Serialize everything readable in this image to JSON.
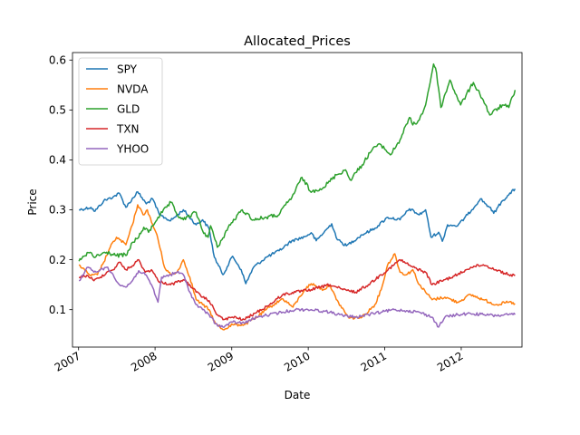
{
  "chart_data": {
    "type": "line",
    "title": "Allocated_Prices",
    "xlabel": "Date",
    "ylabel": "Price",
    "xlim": [
      "2006-12-03",
      "2012-10-17"
    ],
    "ylim": [
      0.025,
      0.615
    ],
    "x_ticks": [
      "2007",
      "2008",
      "2009",
      "2010",
      "2011",
      "2012"
    ],
    "y_ticks": [
      "0.1",
      "0.2",
      "0.3",
      "0.4",
      "0.5",
      "0.6"
    ],
    "grid": false,
    "legend_position": "top-left",
    "series": [
      {
        "name": "SPY",
        "color": "#1f77b4",
        "points": [
          [
            "2007-01-03",
            0.3
          ],
          [
            "2007-03-01",
            0.305
          ],
          [
            "2007-03-20",
            0.297
          ],
          [
            "2007-05-01",
            0.318
          ],
          [
            "2007-06-15",
            0.326
          ],
          [
            "2007-07-15",
            0.333
          ],
          [
            "2007-08-15",
            0.305
          ],
          [
            "2007-10-10",
            0.336
          ],
          [
            "2007-11-20",
            0.312
          ],
          [
            "2007-12-20",
            0.322
          ],
          [
            "2008-01-22",
            0.29
          ],
          [
            "2008-03-15",
            0.278
          ],
          [
            "2008-05-15",
            0.3
          ],
          [
            "2008-07-15",
            0.27
          ],
          [
            "2008-08-15",
            0.28
          ],
          [
            "2008-09-15",
            0.262
          ],
          [
            "2008-10-10",
            0.205
          ],
          [
            "2008-11-20",
            0.17
          ],
          [
            "2009-01-05",
            0.207
          ],
          [
            "2009-02-15",
            0.18
          ],
          [
            "2009-03-09",
            0.152
          ],
          [
            "2009-04-15",
            0.185
          ],
          [
            "2009-06-15",
            0.205
          ],
          [
            "2009-08-15",
            0.218
          ],
          [
            "2009-10-15",
            0.238
          ],
          [
            "2009-12-15",
            0.246
          ],
          [
            "2010-01-15",
            0.254
          ],
          [
            "2010-02-08",
            0.238
          ],
          [
            "2010-04-23",
            0.272
          ],
          [
            "2010-05-20",
            0.24
          ],
          [
            "2010-07-02",
            0.228
          ],
          [
            "2010-09-15",
            0.25
          ],
          [
            "2010-11-15",
            0.263
          ],
          [
            "2011-01-15",
            0.285
          ],
          [
            "2011-03-15",
            0.28
          ],
          [
            "2011-04-29",
            0.302
          ],
          [
            "2011-06-15",
            0.29
          ],
          [
            "2011-07-15",
            0.3
          ],
          [
            "2011-08-10",
            0.245
          ],
          [
            "2011-09-15",
            0.255
          ],
          [
            "2011-10-03",
            0.237
          ],
          [
            "2011-10-28",
            0.27
          ],
          [
            "2011-12-15",
            0.268
          ],
          [
            "2012-01-31",
            0.29
          ],
          [
            "2012-04-02",
            0.322
          ],
          [
            "2012-05-15",
            0.305
          ],
          [
            "2012-06-04",
            0.293
          ],
          [
            "2012-07-15",
            0.318
          ],
          [
            "2012-08-15",
            0.33
          ],
          [
            "2012-09-14",
            0.342
          ]
        ]
      },
      {
        "name": "NVDA",
        "color": "#ff7f0e",
        "points": [
          [
            "2007-01-03",
            0.19
          ],
          [
            "2007-02-01",
            0.178
          ],
          [
            "2007-03-01",
            0.168
          ],
          [
            "2007-04-01",
            0.17
          ],
          [
            "2007-05-01",
            0.195
          ],
          [
            "2007-06-01",
            0.225
          ],
          [
            "2007-07-01",
            0.245
          ],
          [
            "2007-08-15",
            0.23
          ],
          [
            "2007-09-15",
            0.27
          ],
          [
            "2007-10-10",
            0.31
          ],
          [
            "2007-11-05",
            0.29
          ],
          [
            "2007-11-25",
            0.3
          ],
          [
            "2007-12-15",
            0.275
          ],
          [
            "2008-01-10",
            0.25
          ],
          [
            "2008-02-15",
            0.185
          ],
          [
            "2008-03-15",
            0.17
          ],
          [
            "2008-04-15",
            0.175
          ],
          [
            "2008-05-15",
            0.2
          ],
          [
            "2008-06-15",
            0.165
          ],
          [
            "2008-07-15",
            0.12
          ],
          [
            "2008-08-15",
            0.11
          ],
          [
            "2008-09-15",
            0.1
          ],
          [
            "2008-10-15",
            0.072
          ],
          [
            "2008-11-20",
            0.06
          ],
          [
            "2009-01-05",
            0.07
          ],
          [
            "2009-03-01",
            0.07
          ],
          [
            "2009-05-01",
            0.085
          ],
          [
            "2009-07-01",
            0.105
          ],
          [
            "2009-09-01",
            0.122
          ],
          [
            "2009-10-20",
            0.105
          ],
          [
            "2009-12-15",
            0.14
          ],
          [
            "2010-01-15",
            0.152
          ],
          [
            "2010-03-15",
            0.14
          ],
          [
            "2010-04-15",
            0.15
          ],
          [
            "2010-05-15",
            0.12
          ],
          [
            "2010-07-15",
            0.083
          ],
          [
            "2010-09-15",
            0.085
          ],
          [
            "2010-11-15",
            0.11
          ],
          [
            "2010-12-15",
            0.14
          ],
          [
            "2011-01-15",
            0.19
          ],
          [
            "2011-02-18",
            0.212
          ],
          [
            "2011-03-15",
            0.175
          ],
          [
            "2011-04-15",
            0.17
          ],
          [
            "2011-05-15",
            0.18
          ],
          [
            "2011-06-15",
            0.15
          ],
          [
            "2011-08-15",
            0.12
          ],
          [
            "2011-10-15",
            0.125
          ],
          [
            "2011-12-15",
            0.115
          ],
          [
            "2012-02-15",
            0.13
          ],
          [
            "2012-04-15",
            0.12
          ],
          [
            "2012-06-15",
            0.11
          ],
          [
            "2012-08-15",
            0.115
          ],
          [
            "2012-09-14",
            0.112
          ]
        ]
      },
      {
        "name": "GLD",
        "color": "#2ca02c",
        "points": [
          [
            "2007-01-03",
            0.197
          ],
          [
            "2007-02-01",
            0.208
          ],
          [
            "2007-02-26",
            0.215
          ],
          [
            "2007-03-15",
            0.205
          ],
          [
            "2007-05-15",
            0.215
          ],
          [
            "2007-07-01",
            0.208
          ],
          [
            "2007-08-20",
            0.21
          ],
          [
            "2007-09-15",
            0.235
          ],
          [
            "2007-10-15",
            0.245
          ],
          [
            "2007-11-08",
            0.265
          ],
          [
            "2007-12-01",
            0.255
          ],
          [
            "2008-01-15",
            0.285
          ],
          [
            "2008-03-17",
            0.315
          ],
          [
            "2008-04-15",
            0.29
          ],
          [
            "2008-05-15",
            0.28
          ],
          [
            "2008-07-15",
            0.295
          ],
          [
            "2008-08-15",
            0.258
          ],
          [
            "2008-09-10",
            0.245
          ],
          [
            "2008-09-22",
            0.268
          ],
          [
            "2008-10-24",
            0.225
          ],
          [
            "2008-11-15",
            0.24
          ],
          [
            "2008-12-15",
            0.265
          ],
          [
            "2009-02-20",
            0.3
          ],
          [
            "2009-04-15",
            0.28
          ],
          [
            "2009-06-15",
            0.285
          ],
          [
            "2009-08-15",
            0.29
          ],
          [
            "2009-09-15",
            0.31
          ],
          [
            "2009-10-15",
            0.325
          ],
          [
            "2009-12-02",
            0.365
          ],
          [
            "2010-01-15",
            0.335
          ],
          [
            "2010-02-05",
            0.34
          ],
          [
            "2010-03-15",
            0.345
          ],
          [
            "2010-05-15",
            0.37
          ],
          [
            "2010-06-28",
            0.38
          ],
          [
            "2010-07-20",
            0.36
          ],
          [
            "2010-09-15",
            0.39
          ],
          [
            "2010-11-08",
            0.425
          ],
          [
            "2010-12-15",
            0.43
          ],
          [
            "2011-01-28",
            0.41
          ],
          [
            "2011-03-15",
            0.44
          ],
          [
            "2011-04-29",
            0.485
          ],
          [
            "2011-05-15",
            0.47
          ],
          [
            "2011-06-15",
            0.48
          ],
          [
            "2011-07-15",
            0.51
          ],
          [
            "2011-08-22",
            0.592
          ],
          [
            "2011-09-05",
            0.575
          ],
          [
            "2011-09-26",
            0.505
          ],
          [
            "2011-11-08",
            0.56
          ],
          [
            "2011-12-29",
            0.51
          ],
          [
            "2012-02-28",
            0.555
          ],
          [
            "2012-04-15",
            0.52
          ],
          [
            "2012-05-16",
            0.49
          ],
          [
            "2012-07-15",
            0.51
          ],
          [
            "2012-08-15",
            0.505
          ],
          [
            "2012-09-14",
            0.54
          ]
        ]
      },
      {
        "name": "TXN",
        "color": "#d62728",
        "points": [
          [
            "2007-01-03",
            0.165
          ],
          [
            "2007-02-15",
            0.168
          ],
          [
            "2007-03-15",
            0.158
          ],
          [
            "2007-04-15",
            0.165
          ],
          [
            "2007-05-15",
            0.175
          ],
          [
            "2007-06-15",
            0.18
          ],
          [
            "2007-07-15",
            0.195
          ],
          [
            "2007-08-15",
            0.18
          ],
          [
            "2007-09-15",
            0.188
          ],
          [
            "2007-10-15",
            0.2
          ],
          [
            "2007-11-15",
            0.175
          ],
          [
            "2007-12-15",
            0.18
          ],
          [
            "2008-01-15",
            0.158
          ],
          [
            "2008-03-15",
            0.15
          ],
          [
            "2008-05-15",
            0.16
          ],
          [
            "2008-06-15",
            0.15
          ],
          [
            "2008-07-15",
            0.135
          ],
          [
            "2008-08-15",
            0.125
          ],
          [
            "2008-09-15",
            0.118
          ],
          [
            "2008-10-15",
            0.095
          ],
          [
            "2008-11-20",
            0.08
          ],
          [
            "2009-01-05",
            0.085
          ],
          [
            "2009-03-01",
            0.08
          ],
          [
            "2009-05-01",
            0.095
          ],
          [
            "2009-07-01",
            0.11
          ],
          [
            "2009-09-01",
            0.13
          ],
          [
            "2009-11-01",
            0.135
          ],
          [
            "2010-01-15",
            0.14
          ],
          [
            "2010-04-15",
            0.15
          ],
          [
            "2010-06-15",
            0.14
          ],
          [
            "2010-08-15",
            0.135
          ],
          [
            "2010-10-15",
            0.15
          ],
          [
            "2010-12-15",
            0.17
          ],
          [
            "2011-02-15",
            0.19
          ],
          [
            "2011-03-15",
            0.2
          ],
          [
            "2011-05-15",
            0.185
          ],
          [
            "2011-07-15",
            0.175
          ],
          [
            "2011-08-15",
            0.15
          ],
          [
            "2011-10-15",
            0.16
          ],
          [
            "2011-12-15",
            0.17
          ],
          [
            "2012-02-15",
            0.185
          ],
          [
            "2012-04-15",
            0.19
          ],
          [
            "2012-06-15",
            0.18
          ],
          [
            "2012-08-15",
            0.17
          ],
          [
            "2012-09-14",
            0.168
          ]
        ]
      },
      {
        "name": "YHOO",
        "color": "#9467bd",
        "points": [
          [
            "2007-01-03",
            0.158
          ],
          [
            "2007-02-15",
            0.185
          ],
          [
            "2007-03-15",
            0.175
          ],
          [
            "2007-04-15",
            0.18
          ],
          [
            "2007-05-15",
            0.185
          ],
          [
            "2007-06-15",
            0.17
          ],
          [
            "2007-07-15",
            0.15
          ],
          [
            "2007-08-15",
            0.145
          ],
          [
            "2007-09-15",
            0.158
          ],
          [
            "2007-10-15",
            0.178
          ],
          [
            "2007-11-15",
            0.17
          ],
          [
            "2007-12-15",
            0.15
          ],
          [
            "2008-01-15",
            0.115
          ],
          [
            "2008-02-01",
            0.165
          ],
          [
            "2008-03-15",
            0.17
          ],
          [
            "2008-04-15",
            0.175
          ],
          [
            "2008-05-15",
            0.17
          ],
          [
            "2008-06-15",
            0.135
          ],
          [
            "2008-07-15",
            0.11
          ],
          [
            "2008-08-15",
            0.1
          ],
          [
            "2008-09-15",
            0.09
          ],
          [
            "2008-10-15",
            0.072
          ],
          [
            "2008-11-20",
            0.065
          ],
          [
            "2009-01-05",
            0.075
          ],
          [
            "2009-03-01",
            0.073
          ],
          [
            "2009-05-01",
            0.085
          ],
          [
            "2009-07-01",
            0.09
          ],
          [
            "2009-09-01",
            0.095
          ],
          [
            "2009-11-01",
            0.1
          ],
          [
            "2010-01-15",
            0.1
          ],
          [
            "2010-04-15",
            0.095
          ],
          [
            "2010-06-15",
            0.088
          ],
          [
            "2010-08-15",
            0.085
          ],
          [
            "2010-10-15",
            0.09
          ],
          [
            "2010-12-15",
            0.095
          ],
          [
            "2011-02-15",
            0.1
          ],
          [
            "2011-04-15",
            0.098
          ],
          [
            "2011-06-15",
            0.095
          ],
          [
            "2011-08-15",
            0.085
          ],
          [
            "2011-09-15",
            0.065
          ],
          [
            "2011-10-15",
            0.085
          ],
          [
            "2011-12-15",
            0.09
          ],
          [
            "2012-02-15",
            0.092
          ],
          [
            "2012-04-15",
            0.09
          ],
          [
            "2012-06-15",
            0.088
          ],
          [
            "2012-08-15",
            0.09
          ],
          [
            "2012-09-14",
            0.09
          ]
        ]
      }
    ]
  }
}
